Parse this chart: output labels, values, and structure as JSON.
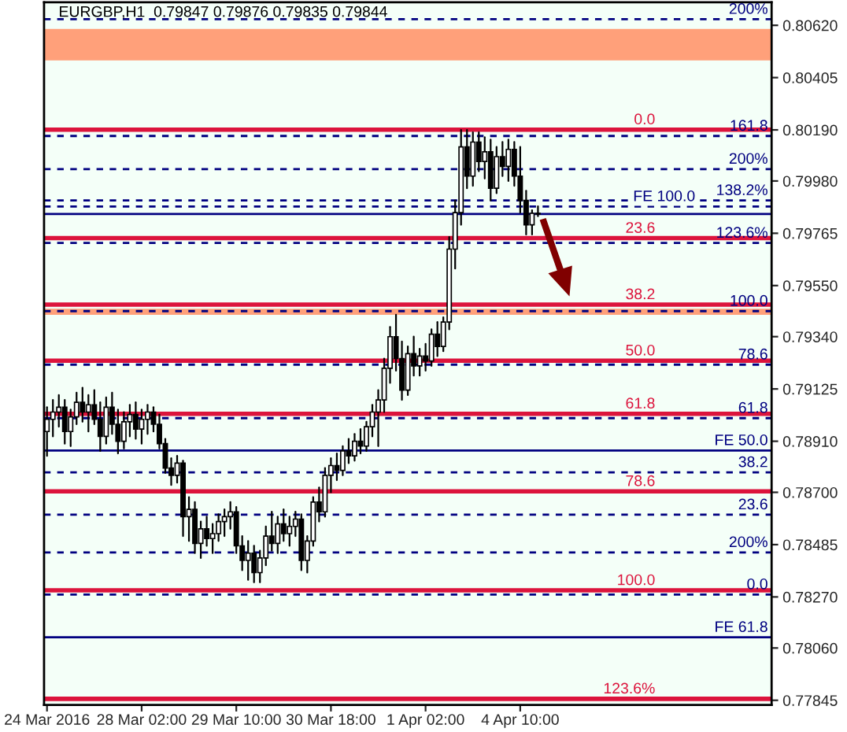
{
  "chart_data": {
    "type": "candlestick",
    "title": "EURGBP,H1  0.79847 0.79876 0.79835 0.79844",
    "categories": [
      "24 Mar 2016",
      null,
      null,
      null,
      null,
      null,
      null,
      null,
      null,
      null,
      null,
      null,
      null,
      null,
      null,
      null,
      "28 Mar 02:00",
      null,
      null,
      null,
      null,
      null,
      null,
      null,
      null,
      null,
      null,
      null,
      null,
      null,
      null,
      null,
      "29 Mar 10:00",
      null,
      null,
      null,
      null,
      null,
      null,
      null,
      null,
      null,
      null,
      null,
      null,
      null,
      null,
      null,
      "30 Mar 18:00",
      null,
      null,
      null,
      null,
      null,
      null,
      null,
      null,
      null,
      null,
      null,
      null,
      null,
      null,
      null,
      "1 Apr 02:00",
      null,
      null,
      null,
      null,
      null,
      null,
      null,
      null,
      null,
      null,
      null,
      null,
      null,
      null,
      null,
      "4 Apr 10:00",
      null,
      null,
      null,
      null,
      null,
      null,
      null,
      null,
      null,
      null,
      null,
      null,
      null,
      null,
      null,
      null,
      null,
      null,
      null,
      null,
      null,
      null,
      null,
      null,
      null,
      null,
      null,
      null,
      null,
      null,
      null,
      null,
      null,
      null,
      null,
      null,
      null,
      null,
      null,
      null,
      null,
      null
    ],
    "color": "#000000",
    "ohlc": [
      [
        0.7895,
        0.7905,
        0.7885,
        0.79
      ],
      [
        0.79,
        0.7908,
        0.7893,
        0.7903
      ],
      [
        0.7903,
        0.791,
        0.7897,
        0.7905
      ],
      [
        0.7905,
        0.7908,
        0.789,
        0.7895
      ],
      [
        0.7895,
        0.7904,
        0.7889,
        0.7901
      ],
      [
        0.7901,
        0.7911,
        0.7898,
        0.7907
      ],
      [
        0.7907,
        0.7913,
        0.7899,
        0.7903
      ],
      [
        0.7903,
        0.791,
        0.7895,
        0.7906
      ],
      [
        0.7906,
        0.7912,
        0.7898,
        0.79
      ],
      [
        0.79,
        0.7907,
        0.7887,
        0.7893
      ],
      [
        0.7893,
        0.7909,
        0.789,
        0.7905
      ],
      [
        0.7905,
        0.7911,
        0.7894,
        0.7898
      ],
      [
        0.7898,
        0.7904,
        0.7886,
        0.7891
      ],
      [
        0.7891,
        0.7903,
        0.7888,
        0.7899
      ],
      [
        0.7899,
        0.7906,
        0.7893,
        0.7902
      ],
      [
        0.7902,
        0.7907,
        0.7892,
        0.7896
      ],
      [
        0.7896,
        0.7904,
        0.789,
        0.79
      ],
      [
        0.79,
        0.7906,
        0.7894,
        0.7903
      ],
      [
        0.7903,
        0.7905,
        0.7895,
        0.7898
      ],
      [
        0.7898,
        0.7902,
        0.7888,
        0.789
      ],
      [
        0.789,
        0.7892,
        0.7878,
        0.788
      ],
      [
        0.788,
        0.7884,
        0.7873,
        0.7877
      ],
      [
        0.7877,
        0.7885,
        0.7874,
        0.7882
      ],
      [
        0.7882,
        0.7883,
        0.7852,
        0.786
      ],
      [
        0.786,
        0.7868,
        0.785,
        0.7863
      ],
      [
        0.7863,
        0.7866,
        0.7845,
        0.7849
      ],
      [
        0.7849,
        0.7858,
        0.7843,
        0.7855
      ],
      [
        0.7855,
        0.786,
        0.7848,
        0.7851
      ],
      [
        0.7851,
        0.7857,
        0.7845,
        0.7853
      ],
      [
        0.7853,
        0.7861,
        0.785,
        0.7858
      ],
      [
        0.7858,
        0.7863,
        0.7852,
        0.786
      ],
      [
        0.786,
        0.7866,
        0.7855,
        0.7862
      ],
      [
        0.7862,
        0.7864,
        0.7845,
        0.7848
      ],
      [
        0.7848,
        0.7852,
        0.7838,
        0.7842
      ],
      [
        0.7842,
        0.785,
        0.7834,
        0.7845
      ],
      [
        0.7845,
        0.7848,
        0.7833,
        0.7837
      ],
      [
        0.7837,
        0.7846,
        0.7833,
        0.7843
      ],
      [
        0.7843,
        0.7856,
        0.784,
        0.7852
      ],
      [
        0.7852,
        0.7862,
        0.7846,
        0.7849
      ],
      [
        0.7849,
        0.786,
        0.7845,
        0.7857
      ],
      [
        0.7857,
        0.7863,
        0.785,
        0.7853
      ],
      [
        0.7853,
        0.786,
        0.7848,
        0.7856
      ],
      [
        0.7856,
        0.7862,
        0.7852,
        0.7859
      ],
      [
        0.7859,
        0.7861,
        0.7838,
        0.7842
      ],
      [
        0.7842,
        0.7852,
        0.7837,
        0.785
      ],
      [
        0.785,
        0.7868,
        0.7848,
        0.7866
      ],
      [
        0.7866,
        0.7872,
        0.7858,
        0.7862
      ],
      [
        0.7862,
        0.788,
        0.786,
        0.7877
      ],
      [
        0.7877,
        0.7884,
        0.787,
        0.7881
      ],
      [
        0.7881,
        0.7886,
        0.7875,
        0.7879
      ],
      [
        0.7879,
        0.7889,
        0.7877,
        0.7887
      ],
      [
        0.7887,
        0.7892,
        0.7882,
        0.7885
      ],
      [
        0.7885,
        0.7894,
        0.7883,
        0.7891
      ],
      [
        0.7891,
        0.7896,
        0.7886,
        0.7889
      ],
      [
        0.7889,
        0.7899,
        0.7887,
        0.7897
      ],
      [
        0.7897,
        0.7906,
        0.7893,
        0.7903
      ],
      [
        0.7903,
        0.7912,
        0.7889,
        0.7908
      ],
      [
        0.7908,
        0.7925,
        0.7903,
        0.7921
      ],
      [
        0.7921,
        0.7938,
        0.7915,
        0.7934
      ],
      [
        0.7934,
        0.7943,
        0.792,
        0.7925
      ],
      [
        0.7925,
        0.7932,
        0.7908,
        0.7912
      ],
      [
        0.7912,
        0.793,
        0.791,
        0.7927
      ],
      [
        0.7927,
        0.7934,
        0.7918,
        0.7922
      ],
      [
        0.7922,
        0.7929,
        0.7918,
        0.7926
      ],
      [
        0.7926,
        0.7931,
        0.792,
        0.7924
      ],
      [
        0.7924,
        0.7937,
        0.7922,
        0.7935
      ],
      [
        0.7935,
        0.794,
        0.7926,
        0.793
      ],
      [
        0.793,
        0.7942,
        0.7928,
        0.794
      ],
      [
        0.794,
        0.7975,
        0.7937,
        0.797
      ],
      [
        0.797,
        0.799,
        0.7962,
        0.7985
      ],
      [
        0.7985,
        0.8019,
        0.798,
        0.8012
      ],
      [
        0.8012,
        0.8019,
        0.7995,
        0.8
      ],
      [
        0.8,
        0.8018,
        0.7996,
        0.8014
      ],
      [
        0.8014,
        0.8018,
        0.8002,
        0.8006
      ],
      [
        0.8006,
        0.8016,
        0.7999,
        0.801
      ],
      [
        0.801,
        0.8015,
        0.799,
        0.7995
      ],
      [
        0.7995,
        0.8012,
        0.7993,
        0.8008
      ],
      [
        0.8008,
        0.8014,
        0.8,
        0.8004
      ],
      [
        0.8004,
        0.8015,
        0.7998,
        0.8011
      ],
      [
        0.8011,
        0.8014,
        0.7996,
        0.8
      ],
      [
        0.8,
        0.8012,
        0.7985,
        0.799
      ],
      [
        0.799,
        0.7994,
        0.7976,
        0.798
      ],
      [
        0.798,
        0.7986,
        0.7976,
        0.79847
      ],
      [
        0.79847,
        0.79876,
        0.79835,
        0.79844
      ],
      null,
      null,
      null,
      null,
      null,
      null,
      null,
      null,
      null,
      null,
      null,
      null,
      null,
      null,
      null,
      null,
      null,
      null,
      null,
      null,
      null,
      null,
      null,
      null,
      null,
      null,
      null,
      null,
      null,
      null,
      null,
      null,
      null,
      null,
      null,
      null,
      null,
      null,
      null
    ],
    "ylim": [
      0.77826,
      0.80715
    ],
    "yticks": [
      {
        "value": 0.8062,
        "label": "0.80620"
      },
      {
        "value": 0.80405,
        "label": "0.80405"
      },
      {
        "value": 0.8019,
        "label": "0.80190"
      },
      {
        "value": 0.7998,
        "label": "0.79980"
      },
      {
        "value": 0.79765,
        "label": "0.79765"
      },
      {
        "value": 0.7955,
        "label": "0.79550"
      },
      {
        "value": 0.7934,
        "label": "0.79340"
      },
      {
        "value": 0.79125,
        "label": "0.79125"
      },
      {
        "value": 0.7891,
        "label": "0.78910"
      },
      {
        "value": 0.787,
        "label": "0.78700"
      },
      {
        "value": 0.78485,
        "label": "0.78485"
      },
      {
        "value": 0.7827,
        "label": "0.78270"
      },
      {
        "value": 0.7806,
        "label": "0.78060"
      },
      {
        "value": 0.77845,
        "label": "0.77845"
      }
    ],
    "bands": [
      {
        "axis": "y",
        "from": 0.80476,
        "to": 0.80605,
        "label": null,
        "color": "#ffa07a"
      },
      {
        "axis": "y",
        "from": 0.7943,
        "to": 0.79455,
        "label": null,
        "color": "#ffa07a"
      }
    ],
    "ref_lines": [
      {
        "axis": "y",
        "value": 0.80191,
        "color": "#dc143c",
        "line_style": "solid"
      },
      {
        "axis": "y",
        "value": 0.79745,
        "color": "#dc143c",
        "line_style": "solid"
      },
      {
        "axis": "y",
        "value": 0.79472,
        "color": "#dc143c",
        "line_style": "solid"
      },
      {
        "axis": "y",
        "value": 0.79241,
        "color": "#dc143c",
        "line_style": "solid"
      },
      {
        "axis": "y",
        "value": 0.79023,
        "color": "#dc143c",
        "line_style": "solid"
      },
      {
        "axis": "y",
        "value": 0.78704,
        "color": "#dc143c",
        "line_style": "solid"
      },
      {
        "axis": "y",
        "value": 0.78297,
        "color": "#dc143c",
        "line_style": "solid"
      },
      {
        "axis": "y",
        "value": 0.77851,
        "color": "#dc143c",
        "line_style": "solid"
      },
      {
        "axis": "y",
        "value": 0.80645,
        "color": "#000080",
        "line_style": "dashed"
      },
      {
        "axis": "y",
        "value": 0.80165,
        "color": "#000080",
        "line_style": "dashed"
      },
      {
        "axis": "y",
        "value": 0.80029,
        "color": "#000080",
        "line_style": "dashed"
      },
      {
        "axis": "y",
        "value": 0.799,
        "color": "#000080",
        "line_style": "dashed"
      },
      {
        "axis": "y",
        "value": 0.79875,
        "color": "#000080",
        "line_style": "dashed"
      },
      {
        "axis": "y",
        "value": 0.79844,
        "color": "#000080",
        "line_style": "solid"
      },
      {
        "axis": "y",
        "value": 0.79725,
        "color": "#000080",
        "line_style": "dashed"
      },
      {
        "axis": "y",
        "value": 0.79445,
        "color": "#000080",
        "line_style": "dashed"
      },
      {
        "axis": "y",
        "value": 0.79225,
        "color": "#000080",
        "line_style": "dashed"
      },
      {
        "axis": "y",
        "value": 0.79005,
        "color": "#000080",
        "line_style": "dashed"
      },
      {
        "axis": "y",
        "value": 0.78872,
        "color": "#000080",
        "line_style": "solid"
      },
      {
        "axis": "y",
        "value": 0.78782,
        "color": "#000080",
        "line_style": "dashed"
      },
      {
        "axis": "y",
        "value": 0.78608,
        "color": "#000080",
        "line_style": "dashed"
      },
      {
        "axis": "y",
        "value": 0.78453,
        "color": "#000080",
        "line_style": "dashed"
      },
      {
        "axis": "y",
        "value": 0.7828,
        "color": "#000080",
        "line_style": "dashed"
      },
      {
        "axis": "y",
        "value": 0.78104,
        "color": "#000080",
        "line_style": "solid"
      }
    ],
    "annotations": [
      {
        "text": "0.0",
        "y": 0.80191
      },
      {
        "text": "23.6",
        "y": 0.79745
      },
      {
        "text": "38.2",
        "y": 0.79472
      },
      {
        "text": "50.0",
        "y": 0.79241
      },
      {
        "text": "61.8",
        "y": 0.79023
      },
      {
        "text": "78.6",
        "y": 0.78704
      },
      {
        "text": "100.0",
        "y": 0.78297
      },
      {
        "text": "123.6%",
        "y": 0.77851
      },
      {
        "text": "200%",
        "y": 0.80645
      },
      {
        "text": "161.8",
        "y": 0.80165
      },
      {
        "text": "200%",
        "y": 0.80029
      },
      {
        "text": "138.2%",
        "y": 0.799
      },
      {
        "text": "FE 100.0",
        "y": 0.79875
      },
      {
        "text": "123.6%",
        "y": 0.79725
      },
      {
        "text": "100.0",
        "y": 0.79445
      },
      {
        "text": "78.6",
        "y": 0.79225
      },
      {
        "text": "61.8",
        "y": 0.79005
      },
      {
        "text": "FE 50.0",
        "y": 0.78872
      },
      {
        "text": "38.2",
        "y": 0.78782
      },
      {
        "text": "23.6",
        "y": 0.78608
      },
      {
        "text": "200%",
        "y": 0.78453
      },
      {
        "text": "0.0",
        "y": 0.7828
      },
      {
        "text": "FE 61.8",
        "y": 0.78104
      }
    ],
    "grid": false,
    "legend": false
  }
}
